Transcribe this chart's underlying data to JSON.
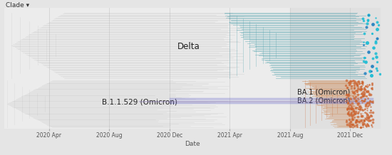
{
  "background_color": "#e5e5e5",
  "plot_bg_color": "#ececec",
  "plot_bg_right_color": "#e0e0e0",
  "title_text": "Clade ▾",
  "xlabel": "Date",
  "x_tick_labels": [
    "2020 Apr",
    "2020 Aug",
    "2020 Dec",
    "2021 Apr",
    "2021 Aug",
    "2021 Dec"
  ],
  "delta_color": "#4a9eaa",
  "delta_dot_color": "#18bcd4",
  "delta_dot_color2": "#2080c0",
  "omicron_color": "#cc6633",
  "omicron_light_color": "#cc8855",
  "ba2_line_color": "#7070cc",
  "ba2_line_color2": "#9080b8",
  "gray_line_color": "#aaaaaa",
  "delta_label": "Delta",
  "b11529_label": "B.1.1.529 (Omicron)",
  "ba1_label": "BA.1 (Omicron)",
  "ba2_label": "BA.2 (Omicron)"
}
